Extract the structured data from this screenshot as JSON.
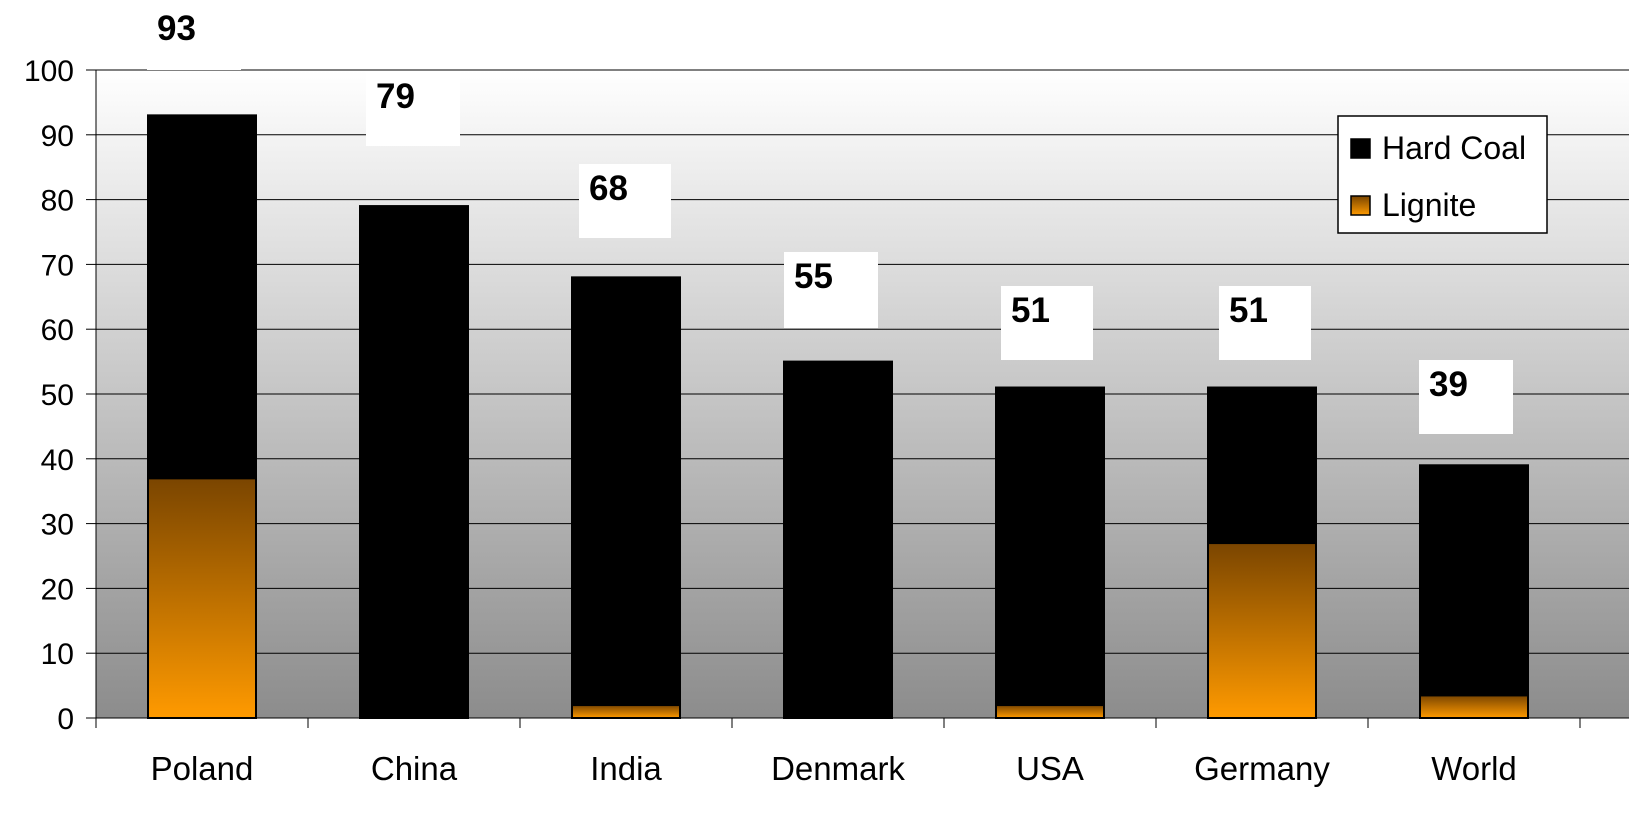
{
  "chart_data": {
    "type": "bar",
    "stacked": true,
    "categories": [
      "Poland",
      "China",
      "India",
      "Denmark",
      "USA",
      "Germany",
      "World"
    ],
    "series": [
      {
        "name": "Lignite",
        "values": [
          37,
          0,
          2,
          0,
          2,
          27,
          3.5
        ]
      },
      {
        "name": "Hard Coal",
        "values": [
          56,
          79,
          66,
          55,
          49,
          24,
          35.5
        ]
      }
    ],
    "totals": [
      93,
      79,
      68,
      55,
      51,
      51,
      39
    ],
    "total_labels": [
      "93",
      "79",
      "68",
      "55",
      "51",
      "51",
      "39"
    ],
    "ylim": [
      0,
      100
    ],
    "yticks": [
      0,
      10,
      20,
      30,
      40,
      50,
      60,
      70,
      80,
      90,
      100
    ],
    "grid": true,
    "legend": {
      "placement": "right",
      "items": [
        {
          "label": "Hard Coal",
          "color": "#000000"
        },
        {
          "label": "Lignite",
          "color": "#f59a10"
        }
      ]
    },
    "colors": {
      "hard_coal": "#000000",
      "lignite_top": "#7a4500",
      "lignite_bottom": "#ff9a00",
      "plot_bg_top": "#ffffff",
      "plot_bg_bottom": "#8c8c8c"
    }
  }
}
